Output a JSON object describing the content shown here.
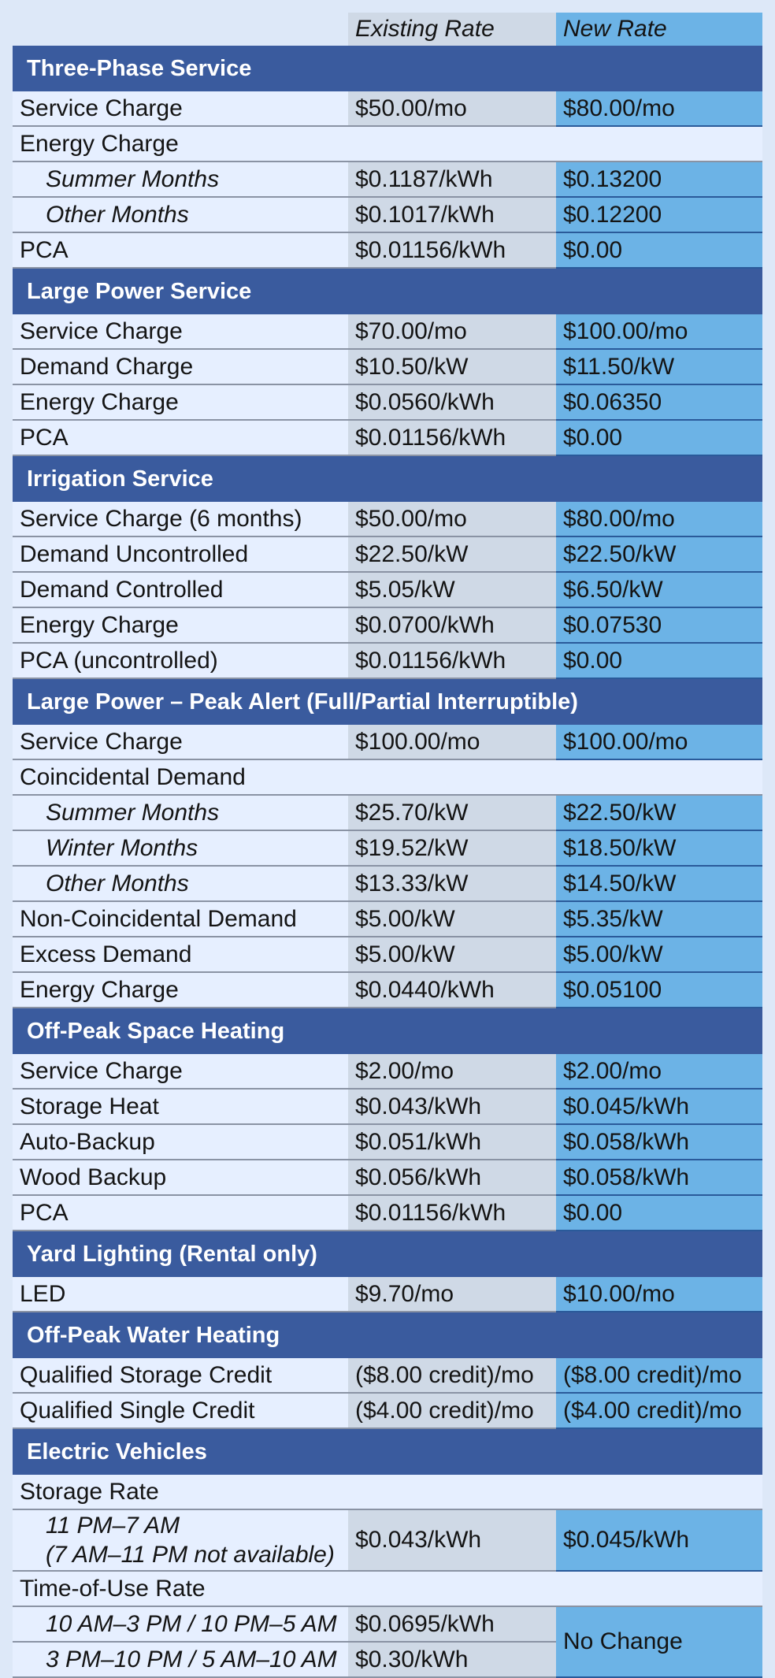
{
  "header": {
    "existing": "Existing Rate",
    "new": "New Rate"
  },
  "sections": {
    "three_phase": {
      "title": "Three-Phase Service",
      "service_charge": [
        "Service Charge",
        "$50.00/mo",
        "$80.00/mo"
      ],
      "energy_charge": "Energy Charge",
      "summer": [
        "Summer Months",
        "$0.1187/kWh",
        "$0.13200"
      ],
      "other": [
        "Other Months",
        "$0.1017/kWh",
        "$0.12200"
      ],
      "pca": [
        "PCA",
        "$0.01156/kWh",
        "$0.00"
      ]
    },
    "large_power": {
      "title": "Large Power Service",
      "service_charge": [
        "Service Charge",
        "$70.00/mo",
        "$100.00/mo"
      ],
      "demand_charge": [
        "Demand Charge",
        "$10.50/kW",
        "$11.50/kW"
      ],
      "energy_charge": [
        "Energy Charge",
        "$0.0560/kWh",
        "$0.06350"
      ],
      "pca": [
        "PCA",
        "$0.01156/kWh",
        "$0.00"
      ]
    },
    "irrigation": {
      "title": "Irrigation Service",
      "service_charge": [
        "Service Charge (6 months)",
        "$50.00/mo",
        "$80.00/mo"
      ],
      "demand_uncontrolled": [
        "Demand Uncontrolled",
        "$22.50/kW",
        "$22.50/kW"
      ],
      "demand_controlled": [
        "Demand Controlled",
        "$5.05/kW",
        "$6.50/kW"
      ],
      "energy_charge": [
        "Energy Charge",
        "$0.0700/kWh",
        "$0.07530"
      ],
      "pca": [
        "PCA (uncontrolled)",
        "$0.01156/kWh",
        "$0.00"
      ]
    },
    "peak_alert": {
      "title": "Large Power – Peak Alert (Full/Partial Interruptible)",
      "service_charge": [
        "Service Charge",
        "$100.00/mo",
        "$100.00/mo"
      ],
      "coincidental": "Coincidental Demand",
      "summer": [
        "Summer Months",
        "$25.70/kW",
        "$22.50/kW"
      ],
      "winter": [
        "Winter Months",
        "$19.52/kW",
        "$18.50/kW"
      ],
      "other": [
        "Other Months",
        "$13.33/kW",
        "$14.50/kW"
      ],
      "non_coincidental": [
        "Non-Coincidental Demand",
        "$5.00/kW",
        "$5.35/kW"
      ],
      "excess": [
        "Excess Demand",
        "$5.00/kW",
        "$5.00/kW"
      ],
      "energy_charge": [
        "Energy Charge",
        "$0.0440/kWh",
        "$0.05100"
      ]
    },
    "space_heating": {
      "title": "Off-Peak Space Heating",
      "service_charge": [
        "Service Charge",
        "$2.00/mo",
        "$2.00/mo"
      ],
      "storage_heat": [
        "Storage Heat",
        "$0.043/kWh",
        "$0.045/kWh"
      ],
      "auto_backup": [
        "Auto-Backup",
        "$0.051/kWh",
        "$0.058/kWh"
      ],
      "wood_backup": [
        "Wood Backup",
        "$0.056/kWh",
        "$0.058/kWh"
      ],
      "pca": [
        "PCA",
        "$0.01156/kWh",
        "$0.00"
      ]
    },
    "yard_lighting": {
      "title": "Yard Lighting (Rental only)",
      "led": [
        "LED",
        "$9.70/mo",
        "$10.00/mo"
      ]
    },
    "water_heating": {
      "title": "Off-Peak Water Heating",
      "storage_credit": [
        "Qualified Storage Credit",
        "($8.00 credit)/mo",
        "($8.00 credit)/mo"
      ],
      "single_credit": [
        "Qualified Single Credit",
        "($4.00 credit)/mo",
        "($4.00 credit)/mo"
      ]
    },
    "ev": {
      "title": "Electric Vehicles",
      "storage_rate": "Storage Rate",
      "storage_line1": "11 PM–7 AM",
      "storage_line2": "(7 AM–11 PM not available)",
      "storage_existing": "$0.043/kWh",
      "storage_new": "$0.045/kWh",
      "tou": "Time-of-Use Rate",
      "tou1": [
        "10 AM–3 PM / 10 PM–5 AM",
        "$0.0695/kWh"
      ],
      "tou2": [
        "3 PM–10 PM / 5 AM–10 AM",
        "$0.30/kWh"
      ],
      "tou_new": "No Change"
    }
  }
}
